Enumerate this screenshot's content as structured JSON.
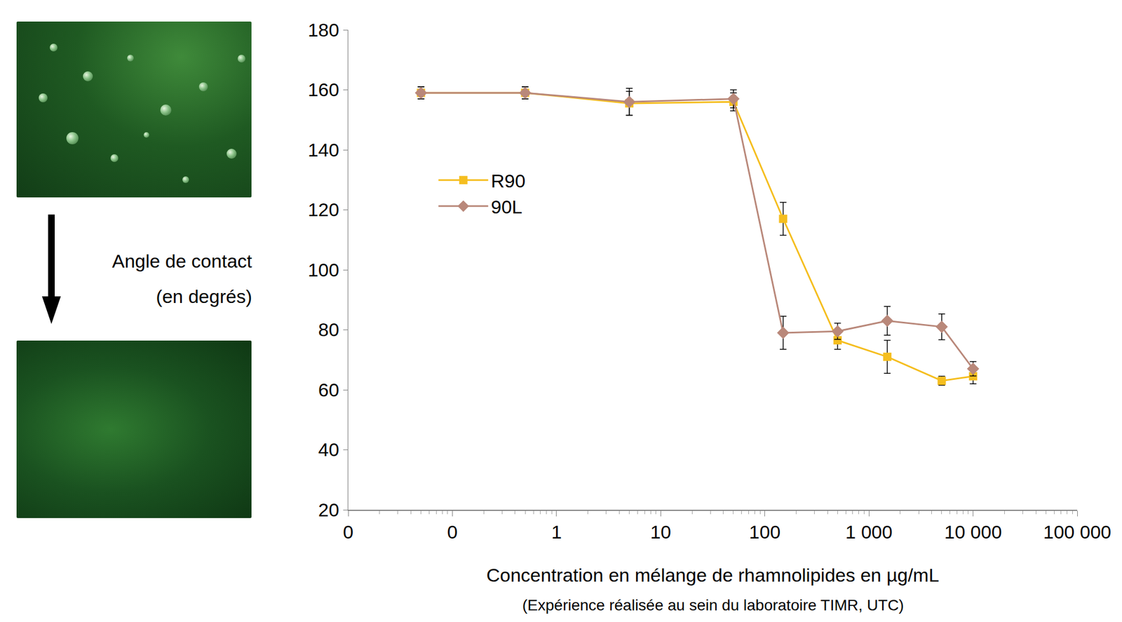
{
  "chart_data": {
    "type": "line",
    "xlabel": "Concentration en mélange de rhamnolipides en µg/mL",
    "annotations": [
      "(Expérience réalisée au sein du laboratoire TIMR, UTC)"
    ],
    "ylabel": "Angle de contact (en degrés)",
    "x": [
      0.05,
      0.5,
      5,
      50,
      150,
      500,
      1500,
      5000,
      10000
    ],
    "series": [
      {
        "name": "R90",
        "color": "#F5BE1F",
        "marker": "square",
        "values": [
          159,
          159,
          155.5,
          156,
          117,
          76.5,
          71,
          63,
          64.5
        ],
        "errors": [
          2,
          2,
          4,
          3,
          5.5,
          3,
          5.5,
          1.5,
          2.5
        ]
      },
      {
        "name": "90L",
        "color": "#B9887A",
        "marker": "diamond",
        "values": [
          159,
          159,
          156,
          157,
          79,
          79.5,
          83,
          81,
          67
        ],
        "errors": [
          2,
          2,
          4.5,
          3,
          5.5,
          2.7,
          4.8,
          4.3,
          2.4
        ]
      }
    ],
    "log": "x",
    "xlim": [
      0.01,
      100000
    ],
    "xticks": [
      {
        "value": 0.01,
        "label": "0"
      },
      {
        "value": 0.1,
        "label": "0"
      },
      1,
      10,
      100,
      {
        "value": 1000,
        "label": "1 000"
      },
      {
        "value": 10000,
        "label": "10 000"
      },
      {
        "value": 100000,
        "label": "100 000"
      }
    ],
    "ylim": [
      20,
      180
    ],
    "yticks": [
      20,
      40,
      60,
      80,
      100,
      120,
      140,
      160,
      180
    ],
    "grid": false,
    "legend": "left"
  }
}
